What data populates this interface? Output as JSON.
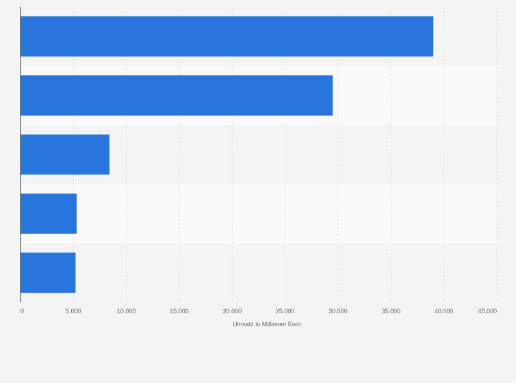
{
  "chart_data": {
    "type": "bar",
    "orientation": "horizontal",
    "categories": [
      "",
      "",
      "",
      "",
      ""
    ],
    "values": [
      39000,
      29500,
      8400,
      5300,
      5200
    ],
    "xlabel": "Umsatz in Millionen Euro",
    "ylabel": "",
    "xlim": [
      0,
      45000
    ],
    "x_ticks": [
      0,
      5000,
      10000,
      15000,
      20000,
      25000,
      30000,
      35000,
      40000,
      45000
    ],
    "x_tick_labels": [
      "0",
      "5.000",
      "10.000",
      "15.000",
      "20.000",
      "25.000",
      "30.000",
      "35.000",
      "40.000",
      "45.000"
    ],
    "grid": "vertical",
    "legend": "none",
    "bar_color": "#2876dd",
    "band_colors": [
      "#f4f4f4",
      "#fafafa"
    ],
    "gridline_color": "#dddddd",
    "axis_color": "#333333"
  }
}
